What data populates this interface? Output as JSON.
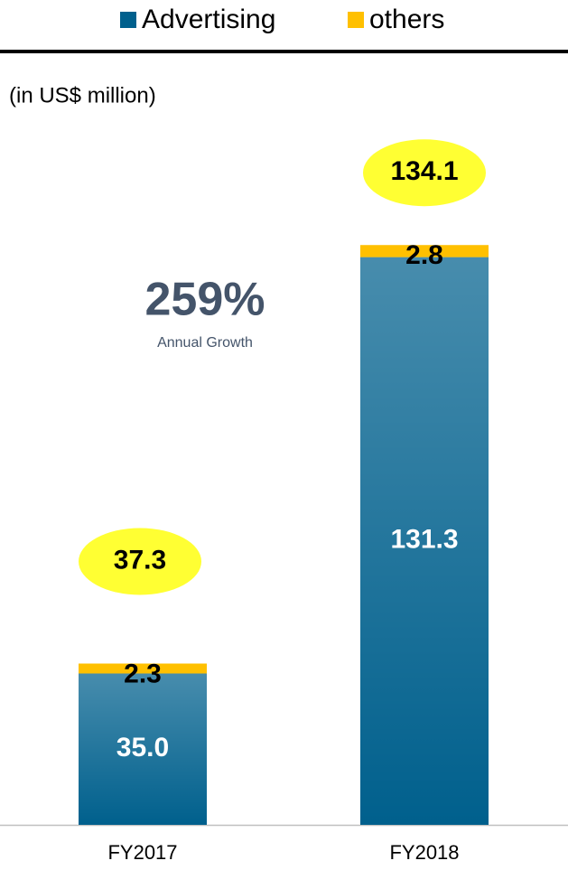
{
  "chart_data": {
    "type": "stacked_bar",
    "subtitle": "(in US$ million)",
    "categories": [
      "FY2017",
      "FY2018"
    ],
    "series": [
      {
        "name": "Advertising",
        "color": "#00608d",
        "values": [
          35.0,
          131.3
        ],
        "value_labels": [
          "35.0",
          "131.3"
        ]
      },
      {
        "name": "others",
        "color": "#ffc000",
        "values": [
          2.3,
          2.8
        ]
      }
    ],
    "totals": [
      37.3,
      134.1
    ],
    "total_color": "#ffff33",
    "annotation": {
      "text": "259%",
      "caption": "Annual Growth"
    },
    "ylim": [
      0,
      140
    ],
    "legend": "top"
  }
}
